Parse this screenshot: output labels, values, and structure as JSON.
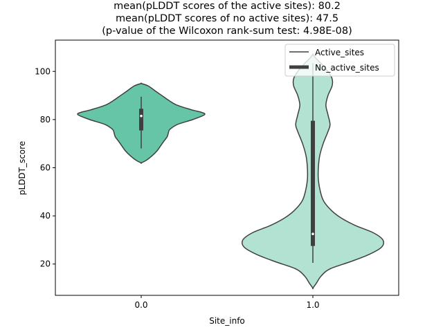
{
  "chart_data": {
    "type": "violin",
    "title_lines": [
      "mean(pLDDT scores of the active sites): 80.2",
      "mean(pLDDT scores of no active sites): 47.5",
      "(p-value of the Wilcoxon rank-sum test: 4.98E-08)"
    ],
    "xlabel": "Site_info",
    "ylabel": "pLDDT_score",
    "categories": [
      "0.0",
      "1.0"
    ],
    "ylim": [
      7,
      113
    ],
    "yticks": [
      20,
      40,
      60,
      80,
      100
    ],
    "yticklabels": [
      "20",
      "40",
      "60",
      "80",
      "100"
    ],
    "violins": [
      {
        "name": "Active_sites",
        "category": "0.0",
        "color": "#66c5a6",
        "profile": [
          [
            62,
            0.0
          ],
          [
            63,
            0.07
          ],
          [
            65,
            0.16
          ],
          [
            67,
            0.23
          ],
          [
            69,
            0.28
          ],
          [
            71,
            0.33
          ],
          [
            73,
            0.38
          ],
          [
            75,
            0.4
          ],
          [
            76,
            0.42
          ],
          [
            78,
            0.53
          ],
          [
            80,
            0.75
          ],
          [
            82,
            0.92
          ],
          [
            83,
            0.88
          ],
          [
            84,
            0.74
          ],
          [
            86,
            0.52
          ],
          [
            88,
            0.4
          ],
          [
            90,
            0.3
          ],
          [
            92,
            0.2
          ],
          [
            94,
            0.1
          ],
          [
            95,
            0.0
          ]
        ],
        "box": {
          "q1": 75.5,
          "median": 81.5,
          "q3": 84.5,
          "whisker_low": 68,
          "whisker_high": 89.5
        }
      },
      {
        "name": "No_active_sites",
        "category": "1.0",
        "color": "#b2e2d2",
        "profile": [
          [
            10,
            0.0
          ],
          [
            12,
            0.05
          ],
          [
            15,
            0.12
          ],
          [
            18,
            0.25
          ],
          [
            21,
            0.55
          ],
          [
            24,
            0.82
          ],
          [
            27,
            1.0
          ],
          [
            30,
            1.02
          ],
          [
            33,
            0.88
          ],
          [
            36,
            0.62
          ],
          [
            39,
            0.42
          ],
          [
            42,
            0.28
          ],
          [
            46,
            0.16
          ],
          [
            50,
            0.11
          ],
          [
            55,
            0.08
          ],
          [
            60,
            0.08
          ],
          [
            65,
            0.1
          ],
          [
            70,
            0.15
          ],
          [
            75,
            0.22
          ],
          [
            78,
            0.25
          ],
          [
            82,
            0.22
          ],
          [
            86,
            0.19
          ],
          [
            90,
            0.22
          ],
          [
            94,
            0.28
          ],
          [
            97,
            0.28
          ],
          [
            100,
            0.22
          ],
          [
            103,
            0.13
          ],
          [
            105,
            0.06
          ],
          [
            107,
            0.0
          ]
        ],
        "box": {
          "q1": 27.5,
          "median": 32.5,
          "q3": 79.5,
          "whisker_low": 20.5,
          "whisker_high": 103.5
        }
      }
    ],
    "legend": {
      "position": "top-right",
      "entries": [
        {
          "label": "Active_sites",
          "style": "thin-line"
        },
        {
          "label": "No_active_sites",
          "style": "thick-line"
        }
      ]
    }
  }
}
